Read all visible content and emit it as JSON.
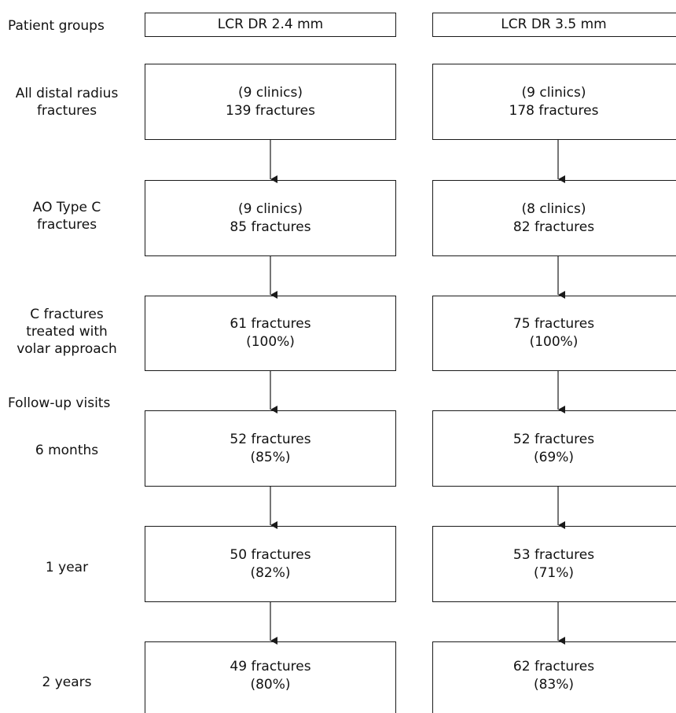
{
  "row_labels": {
    "patient_groups": "Patient groups",
    "all_distal": [
      "All distal radius",
      "fractures"
    ],
    "ao_type_c": [
      "AO Type C",
      "fractures"
    ],
    "c_fractures_volar": [
      "C fractures",
      "treated with",
      "volar approach"
    ],
    "follow_up": "Follow-up visits",
    "six_months": "6 months",
    "one_year": "1 year",
    "two_years": "2 years"
  },
  "columns": [
    {
      "header": "LCR DR 2.4 mm",
      "all_distal": [
        "(9 clinics)",
        "139 fractures"
      ],
      "ao_type_c": [
        "(9 clinics)",
        "85 fractures"
      ],
      "volar": [
        "61 fractures",
        "(100%)"
      ],
      "six_months": [
        "52 fractures",
        "(85%)"
      ],
      "one_year": [
        "50 fractures",
        "(82%)"
      ],
      "two_years": [
        "49 fractures",
        "(80%)"
      ]
    },
    {
      "header": "LCR DR 3.5 mm",
      "all_distal": [
        "(9 clinics)",
        "178 fractures"
      ],
      "ao_type_c": [
        "(8 clinics)",
        "82 fractures"
      ],
      "volar": [
        "75 fractures",
        "(100%)"
      ],
      "six_months": [
        "52 fractures",
        "(69%)"
      ],
      "one_year": [
        "53 fractures",
        "(71%)"
      ],
      "two_years": [
        "62 fractures",
        "(83%)"
      ]
    }
  ]
}
